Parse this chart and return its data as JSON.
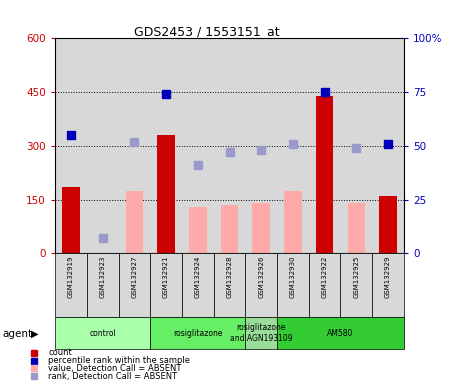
{
  "title": "GDS2453 / 1553151_at",
  "samples": [
    "GSM132919",
    "GSM132923",
    "GSM132927",
    "GSM132921",
    "GSM132924",
    "GSM132928",
    "GSM132926",
    "GSM132930",
    "GSM132922",
    "GSM132925",
    "GSM132929"
  ],
  "count_present": [
    185,
    null,
    null,
    330,
    null,
    null,
    null,
    null,
    440,
    null,
    160
  ],
  "count_absent": [
    null,
    null,
    175,
    null,
    130,
    135,
    140,
    175,
    null,
    140,
    null
  ],
  "rank_present": [
    55,
    null,
    null,
    74,
    null,
    null,
    null,
    null,
    75,
    null,
    51
  ],
  "rank_absent": [
    null,
    7,
    52,
    null,
    41,
    47,
    48,
    51,
    null,
    49,
    null
  ],
  "agents": [
    {
      "label": "control",
      "span": [
        0,
        3
      ],
      "color": "#aaffaa"
    },
    {
      "label": "rosiglitazone",
      "span": [
        3,
        6
      ],
      "color": "#66ee66"
    },
    {
      "label": "rosiglitazone\nand AGN193109",
      "span": [
        6,
        7
      ],
      "color": "#99dd99"
    },
    {
      "label": "AM580",
      "span": [
        7,
        11
      ],
      "color": "#33cc33"
    }
  ],
  "ylim_left": [
    0,
    600
  ],
  "ylim_right": [
    0,
    100
  ],
  "yticks_left": [
    0,
    150,
    300,
    450,
    600
  ],
  "yticks_right": [
    0,
    25,
    50,
    75,
    100
  ],
  "count_present_color": "#cc0000",
  "count_absent_color": "#ffaaaa",
  "rank_present_color": "#0000bb",
  "rank_absent_color": "#9999cc",
  "bg_color": "#d8d8d8",
  "grid_yticks": [
    150,
    300,
    450
  ]
}
